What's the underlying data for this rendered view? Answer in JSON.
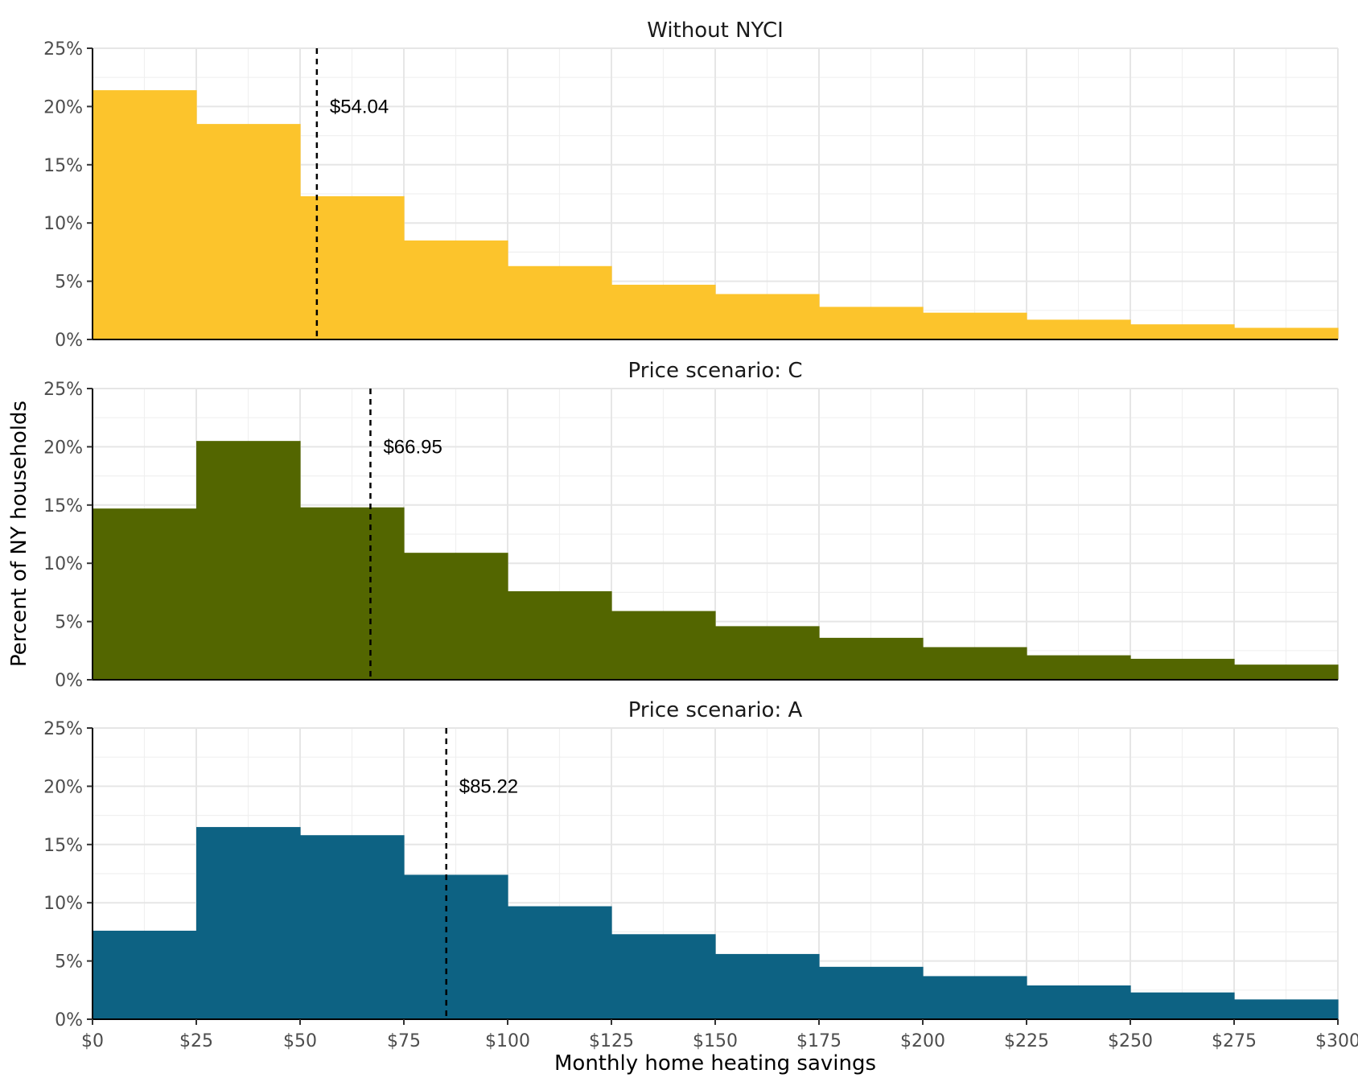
{
  "chart_data": {
    "type": "histogram",
    "xlabel": "Monthly home heating savings",
    "ylabel": "Percent of NY households",
    "bin_edges": [
      0,
      25,
      50,
      75,
      100,
      125,
      150,
      175,
      200,
      225,
      250,
      275,
      300
    ],
    "x_ticks": [
      0,
      25,
      50,
      75,
      100,
      125,
      150,
      175,
      200,
      225,
      250,
      275,
      300
    ],
    "x_tick_labels": [
      "$0",
      "$25",
      "$50",
      "$75",
      "$100",
      "$125",
      "$150",
      "$175",
      "$200",
      "$225",
      "$250",
      "$275",
      "$300"
    ],
    "xlim": [
      0,
      300
    ],
    "y_ticks": [
      0,
      5,
      10,
      15,
      20,
      25
    ],
    "y_tick_labels": [
      "0%",
      "5%",
      "10%",
      "15%",
      "20%",
      "25%"
    ],
    "ylim": [
      0,
      25
    ],
    "grid": true,
    "panels": [
      {
        "title": "Without NYCI",
        "color": "#FCC42C",
        "values": [
          21.4,
          18.5,
          12.3,
          8.5,
          6.3,
          4.7,
          3.9,
          2.8,
          2.3,
          1.7,
          1.3,
          1.0
        ],
        "median": 54.04,
        "median_label": "$54.04"
      },
      {
        "title": "Price scenario: C",
        "color": "#536600",
        "values": [
          14.7,
          20.5,
          14.8,
          10.9,
          7.6,
          5.9,
          4.6,
          3.6,
          2.8,
          2.1,
          1.8,
          1.3
        ],
        "median": 66.95,
        "median_label": "$66.95"
      },
      {
        "title": "Price scenario: A",
        "color": "#0D6283",
        "values": [
          7.6,
          16.5,
          15.8,
          12.4,
          9.7,
          7.3,
          5.6,
          4.5,
          3.7,
          2.9,
          2.3,
          1.7
        ],
        "median": 85.22,
        "median_label": "$85.22"
      }
    ]
  }
}
